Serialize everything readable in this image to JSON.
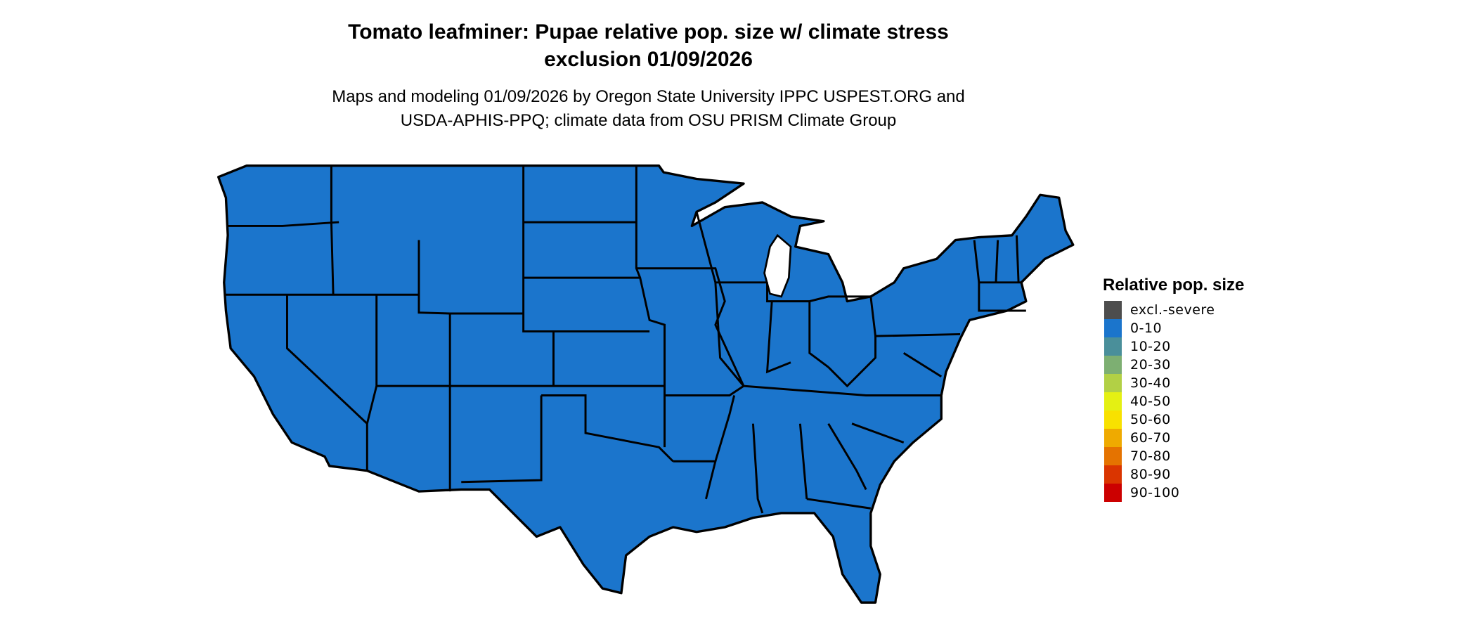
{
  "title": {
    "line1": "Tomato leafminer: Pupae relative pop. size w/ climate stress",
    "line2": "exclusion 01/09/2026"
  },
  "subtitle": {
    "line1": "Maps and modeling 01/09/2026 by Oregon State University IPPC USPEST.ORG and",
    "line2": "USDA-APHIS-PPQ; climate data from OSU PRISM Climate Group"
  },
  "map": {
    "region": "Contiguous United States",
    "fill_color": "#1B75CC",
    "border_color": "#000000",
    "displayed_class": "0-10"
  },
  "legend": {
    "title": "Relative pop. size",
    "items": [
      {
        "label": "excl.-severe",
        "color": "#4D4D4D"
      },
      {
        "label": "0-10",
        "color": "#1B75CC"
      },
      {
        "label": "10-20",
        "color": "#4A8F9A"
      },
      {
        "label": "20-30",
        "color": "#7DAF72"
      },
      {
        "label": "30-40",
        "color": "#B2D045"
      },
      {
        "label": "40-50",
        "color": "#E4F013"
      },
      {
        "label": "50-60",
        "color": "#F8E100"
      },
      {
        "label": "60-70",
        "color": "#EFAA00"
      },
      {
        "label": "70-80",
        "color": "#E57300"
      },
      {
        "label": "80-90",
        "color": "#DA3500"
      },
      {
        "label": "90-100",
        "color": "#CC0000"
      }
    ]
  }
}
